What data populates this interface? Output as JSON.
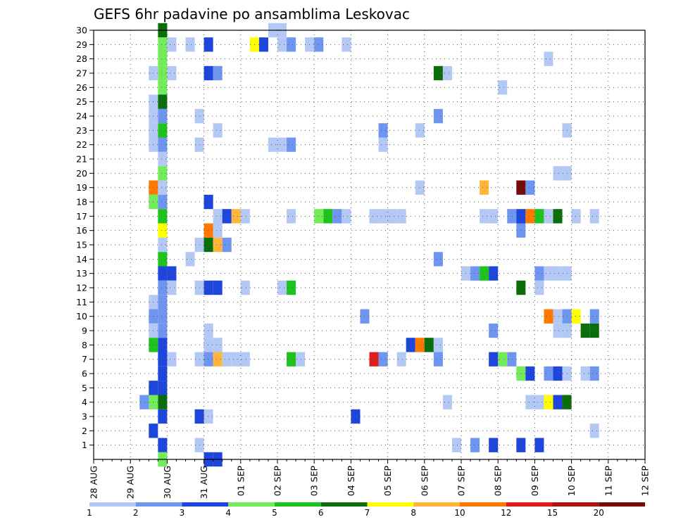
{
  "chart_data": {
    "type": "heatmap",
    "title": "GEFS 6hr padavine po ansamblima Leskovac",
    "xlabel": "",
    "ylabel": "",
    "x_tick_labels": [
      "28 AUG",
      "29 AUG",
      "30 AUG",
      "31 AUG",
      "01 SEP",
      "02 SEP",
      "03 SEP",
      "04 SEP",
      "05 SEP",
      "06 SEP",
      "07 SEP",
      "08 SEP",
      "09 SEP",
      "10 SEP",
      "11 SEP",
      "12 SEP"
    ],
    "y_tick_labels": [
      "1",
      "2",
      "3",
      "4",
      "5",
      "6",
      "7",
      "8",
      "9",
      "10",
      "11",
      "12",
      "13",
      "14",
      "15",
      "16",
      "17",
      "18",
      "19",
      "20",
      "21",
      "22",
      "23",
      "24",
      "25",
      "26",
      "27",
      "28",
      "29",
      "30"
    ],
    "ylim": [
      0,
      30
    ],
    "steps_per_day": 4,
    "grid": true,
    "colorbar": {
      "position": "bottom",
      "labels": [
        "1",
        "2",
        "3",
        "4",
        "5",
        "6",
        "7",
        "8",
        "10",
        "12",
        "15",
        "20"
      ],
      "colors": [
        "#b4c8f5",
        "#6e96f0",
        "#1e46dc",
        "#74eb5a",
        "#1ec31e",
        "#0a6e0a",
        "#ffff00",
        "#ffb43c",
        "#ff7800",
        "#dc1e1e",
        "#aa1414",
        "#780a0a"
      ]
    },
    "cells": [
      {
        "x": 7.5,
        "y": 30,
        "c": 5
      },
      {
        "x": 7.5,
        "y": 29,
        "c": 3
      },
      {
        "x": 7.5,
        "y": 28,
        "c": 3
      },
      {
        "x": 7.5,
        "y": 27,
        "c": 3
      },
      {
        "x": 7.5,
        "y": 26,
        "c": 3
      },
      {
        "x": 7.5,
        "y": 25,
        "c": 5
      },
      {
        "x": 7.5,
        "y": 24,
        "c": 1
      },
      {
        "x": 7.5,
        "y": 23,
        "c": 4
      },
      {
        "x": 7.5,
        "y": 22,
        "c": 1
      },
      {
        "x": 7.5,
        "y": 21,
        "c": 0
      },
      {
        "x": 7.5,
        "y": 20,
        "c": 3
      },
      {
        "x": 7.5,
        "y": 19,
        "c": 0
      },
      {
        "x": 7.5,
        "y": 18,
        "c": 1
      },
      {
        "x": 7.5,
        "y": 17,
        "c": 4
      },
      {
        "x": 7.5,
        "y": 16,
        "c": 6
      },
      {
        "x": 7.5,
        "y": 15,
        "c": 0
      },
      {
        "x": 7.5,
        "y": 14,
        "c": 4
      },
      {
        "x": 7.5,
        "y": 13,
        "c": 2
      },
      {
        "x": 7.5,
        "y": 12,
        "c": 1
      },
      {
        "x": 7.5,
        "y": 11,
        "c": 1
      },
      {
        "x": 7.5,
        "y": 10,
        "c": 1
      },
      {
        "x": 7.5,
        "y": 9,
        "c": 1
      },
      {
        "x": 7.5,
        "y": 8,
        "c": 2
      },
      {
        "x": 7.5,
        "y": 7,
        "c": 2
      },
      {
        "x": 7.5,
        "y": 6,
        "c": 2
      },
      {
        "x": 7.5,
        "y": 5,
        "c": 2
      },
      {
        "x": 7.5,
        "y": 4,
        "c": 5
      },
      {
        "x": 7.5,
        "y": 3,
        "c": 2
      },
      {
        "x": 7.5,
        "y": 1,
        "c": 2
      },
      {
        "x": 7.5,
        "y": 0,
        "c": 3
      },
      {
        "x": 6.5,
        "y": 27,
        "c": 0
      },
      {
        "x": 6.5,
        "y": 25,
        "c": 0
      },
      {
        "x": 6.5,
        "y": 24,
        "c": 0
      },
      {
        "x": 6.5,
        "y": 23,
        "c": 0
      },
      {
        "x": 6.5,
        "y": 22,
        "c": 0
      },
      {
        "x": 6.5,
        "y": 19,
        "c": 8
      },
      {
        "x": 6.5,
        "y": 18,
        "c": 3
      },
      {
        "x": 6.5,
        "y": 11,
        "c": 0
      },
      {
        "x": 6.5,
        "y": 10,
        "c": 1
      },
      {
        "x": 6.5,
        "y": 9,
        "c": 0
      },
      {
        "x": 6.5,
        "y": 8,
        "c": 4
      },
      {
        "x": 6.5,
        "y": 5,
        "c": 2
      },
      {
        "x": 6.5,
        "y": 4,
        "c": 3
      },
      {
        "x": 6.5,
        "y": 2,
        "c": 2
      },
      {
        "x": 5.5,
        "y": 4,
        "c": 1
      },
      {
        "x": 8.5,
        "y": 29,
        "c": 0
      },
      {
        "x": 8.5,
        "y": 27,
        "c": 0
      },
      {
        "x": 8.5,
        "y": 13,
        "c": 2
      },
      {
        "x": 8.5,
        "y": 12,
        "c": 0
      },
      {
        "x": 8.5,
        "y": 7,
        "c": 0
      },
      {
        "x": 10.5,
        "y": 14,
        "c": 0
      },
      {
        "x": 10.5,
        "y": 29,
        "c": 0
      },
      {
        "x": 11.5,
        "y": 22,
        "c": 0
      },
      {
        "x": 11.5,
        "y": 24,
        "c": 0
      },
      {
        "x": 11.5,
        "y": 15,
        "c": 0
      },
      {
        "x": 11.5,
        "y": 12,
        "c": 0
      },
      {
        "x": 11.5,
        "y": 7,
        "c": 0
      },
      {
        "x": 11.5,
        "y": 3,
        "c": 2
      },
      {
        "x": 11.5,
        "y": 1,
        "c": 0
      },
      {
        "x": 12.5,
        "y": 29,
        "c": 2
      },
      {
        "x": 12.5,
        "y": 27,
        "c": 2
      },
      {
        "x": 12.5,
        "y": 18,
        "c": 2
      },
      {
        "x": 12.5,
        "y": 16,
        "c": 8
      },
      {
        "x": 12.5,
        "y": 15,
        "c": 5
      },
      {
        "x": 12.5,
        "y": 12,
        "c": 2
      },
      {
        "x": 12.5,
        "y": 9,
        "c": 0
      },
      {
        "x": 12.5,
        "y": 8,
        "c": 0
      },
      {
        "x": 12.5,
        "y": 7,
        "c": 1
      },
      {
        "x": 12.5,
        "y": 3,
        "c": 0
      },
      {
        "x": 12.5,
        "y": 0,
        "c": 2
      },
      {
        "x": 13.5,
        "y": 27,
        "c": 1
      },
      {
        "x": 13.5,
        "y": 23,
        "c": 0
      },
      {
        "x": 13.5,
        "y": 17,
        "c": 0
      },
      {
        "x": 13.5,
        "y": 16,
        "c": 0
      },
      {
        "x": 13.5,
        "y": 15,
        "c": 7
      },
      {
        "x": 13.5,
        "y": 12,
        "c": 2
      },
      {
        "x": 13.5,
        "y": 8,
        "c": 0
      },
      {
        "x": 13.5,
        "y": 7,
        "c": 7
      },
      {
        "x": 13.5,
        "y": 0,
        "c": 2
      },
      {
        "x": 14.5,
        "y": 17,
        "c": 2
      },
      {
        "x": 14.5,
        "y": 15,
        "c": 1
      },
      {
        "x": 14.5,
        "y": 7,
        "c": 0
      },
      {
        "x": 15.5,
        "y": 17,
        "c": 7
      },
      {
        "x": 15.5,
        "y": 7,
        "c": 0
      },
      {
        "x": 16.5,
        "y": 17,
        "c": 0
      },
      {
        "x": 16.5,
        "y": 12,
        "c": 0
      },
      {
        "x": 16.5,
        "y": 7,
        "c": 0
      },
      {
        "x": 17.5,
        "y": 29,
        "c": 6
      },
      {
        "x": 18.5,
        "y": 29,
        "c": 2
      },
      {
        "x": 19.5,
        "y": 30,
        "c": 0
      },
      {
        "x": 19.5,
        "y": 22,
        "c": 0
      },
      {
        "x": 20.5,
        "y": 30,
        "c": 0
      },
      {
        "x": 20.5,
        "y": 29,
        "c": 0
      },
      {
        "x": 20.5,
        "y": 22,
        "c": 0
      },
      {
        "x": 20.5,
        "y": 12,
        "c": 0
      },
      {
        "x": 21.5,
        "y": 29,
        "c": 1
      },
      {
        "x": 21.5,
        "y": 22,
        "c": 1
      },
      {
        "x": 21.5,
        "y": 17,
        "c": 0
      },
      {
        "x": 21.5,
        "y": 12,
        "c": 4
      },
      {
        "x": 21.5,
        "y": 7,
        "c": 4
      },
      {
        "x": 22.5,
        "y": 7,
        "c": 0
      },
      {
        "x": 23.5,
        "y": 29,
        "c": 0
      },
      {
        "x": 24.5,
        "y": 29,
        "c": 1
      },
      {
        "x": 24.5,
        "y": 17,
        "c": 3
      },
      {
        "x": 25.5,
        "y": 17,
        "c": 4
      },
      {
        "x": 26.5,
        "y": 17,
        "c": 1
      },
      {
        "x": 27.5,
        "y": 29,
        "c": 0
      },
      {
        "x": 27.5,
        "y": 17,
        "c": 0
      },
      {
        "x": 28.5,
        "y": 3,
        "c": 2
      },
      {
        "x": 29.5,
        "y": 10,
        "c": 1
      },
      {
        "x": 30.5,
        "y": 17,
        "c": 0
      },
      {
        "x": 30.5,
        "y": 7,
        "c": 9
      },
      {
        "x": 31.5,
        "y": 23,
        "c": 1
      },
      {
        "x": 31.5,
        "y": 22,
        "c": 0
      },
      {
        "x": 31.5,
        "y": 17,
        "c": 0
      },
      {
        "x": 31.5,
        "y": 7,
        "c": 1
      },
      {
        "x": 32.5,
        "y": 17,
        "c": 0
      },
      {
        "x": 33.5,
        "y": 17,
        "c": 0
      },
      {
        "x": 33.5,
        "y": 7,
        "c": 0
      },
      {
        "x": 34.5,
        "y": 8,
        "c": 2
      },
      {
        "x": 35.5,
        "y": 23,
        "c": 0
      },
      {
        "x": 35.5,
        "y": 19,
        "c": 0
      },
      {
        "x": 35.5,
        "y": 8,
        "c": 8
      },
      {
        "x": 36.5,
        "y": 8,
        "c": 5
      },
      {
        "x": 37.5,
        "y": 27,
        "c": 5
      },
      {
        "x": 37.5,
        "y": 24,
        "c": 1
      },
      {
        "x": 37.5,
        "y": 14,
        "c": 1
      },
      {
        "x": 37.5,
        "y": 8,
        "c": 0
      },
      {
        "x": 37.5,
        "y": 7,
        "c": 1
      },
      {
        "x": 38.5,
        "y": 27,
        "c": 0
      },
      {
        "x": 38.5,
        "y": 4,
        "c": 0
      },
      {
        "x": 39.5,
        "y": 1,
        "c": 0
      },
      {
        "x": 40.5,
        "y": 13,
        "c": 0
      },
      {
        "x": 41.5,
        "y": 13,
        "c": 1
      },
      {
        "x": 41.5,
        "y": 1,
        "c": 1
      },
      {
        "x": 42.5,
        "y": 19,
        "c": 7
      },
      {
        "x": 42.5,
        "y": 17,
        "c": 0
      },
      {
        "x": 42.5,
        "y": 13,
        "c": 4
      },
      {
        "x": 43.5,
        "y": 17,
        "c": 0
      },
      {
        "x": 43.5,
        "y": 13,
        "c": 2
      },
      {
        "x": 43.5,
        "y": 9,
        "c": 1
      },
      {
        "x": 43.5,
        "y": 7,
        "c": 2
      },
      {
        "x": 43.5,
        "y": 1,
        "c": 2
      },
      {
        "x": 44.5,
        "y": 26,
        "c": 0
      },
      {
        "x": 44.5,
        "y": 7,
        "c": 3
      },
      {
        "x": 45.5,
        "y": 17,
        "c": 1
      },
      {
        "x": 45.5,
        "y": 7,
        "c": 1
      },
      {
        "x": 46.5,
        "y": 19,
        "c": 11
      },
      {
        "x": 46.5,
        "y": 17,
        "c": 2
      },
      {
        "x": 46.5,
        "y": 16,
        "c": 1
      },
      {
        "x": 46.5,
        "y": 12,
        "c": 5
      },
      {
        "x": 46.5,
        "y": 6,
        "c": 3
      },
      {
        "x": 46.5,
        "y": 1,
        "c": 2
      },
      {
        "x": 47.5,
        "y": 19,
        "c": 1
      },
      {
        "x": 47.5,
        "y": 17,
        "c": 8
      },
      {
        "x": 47.5,
        "y": 6,
        "c": 2
      },
      {
        "x": 47.5,
        "y": 4,
        "c": 0
      },
      {
        "x": 48.5,
        "y": 17,
        "c": 4
      },
      {
        "x": 48.5,
        "y": 13,
        "c": 1
      },
      {
        "x": 48.5,
        "y": 12,
        "c": 0
      },
      {
        "x": 48.5,
        "y": 4,
        "c": 0
      },
      {
        "x": 48.5,
        "y": 1,
        "c": 2
      },
      {
        "x": 49.5,
        "y": 28,
        "c": 0
      },
      {
        "x": 49.5,
        "y": 17,
        "c": 0
      },
      {
        "x": 49.5,
        "y": 13,
        "c": 0
      },
      {
        "x": 49.5,
        "y": 10,
        "c": 8
      },
      {
        "x": 49.5,
        "y": 6,
        "c": 1
      },
      {
        "x": 49.5,
        "y": 4,
        "c": 6
      },
      {
        "x": 50.5,
        "y": 20,
        "c": 0
      },
      {
        "x": 50.5,
        "y": 17,
        "c": 5
      },
      {
        "x": 50.5,
        "y": 13,
        "c": 0
      },
      {
        "x": 50.5,
        "y": 10,
        "c": 0
      },
      {
        "x": 50.5,
        "y": 9,
        "c": 0
      },
      {
        "x": 50.5,
        "y": 6,
        "c": 2
      },
      {
        "x": 50.5,
        "y": 4,
        "c": 2
      },
      {
        "x": 51.5,
        "y": 23,
        "c": 0
      },
      {
        "x": 51.5,
        "y": 20,
        "c": 0
      },
      {
        "x": 51.5,
        "y": 13,
        "c": 0
      },
      {
        "x": 51.5,
        "y": 10,
        "c": 1
      },
      {
        "x": 51.5,
        "y": 9,
        "c": 0
      },
      {
        "x": 51.5,
        "y": 6,
        "c": 0
      },
      {
        "x": 51.5,
        "y": 4,
        "c": 5
      },
      {
        "x": 52.5,
        "y": 17,
        "c": 0
      },
      {
        "x": 52.5,
        "y": 10,
        "c": 6
      },
      {
        "x": 53.5,
        "y": 9,
        "c": 5
      },
      {
        "x": 53.5,
        "y": 6,
        "c": 0
      },
      {
        "x": 54.5,
        "y": 17,
        "c": 0
      },
      {
        "x": 54.5,
        "y": 10,
        "c": 1
      },
      {
        "x": 54.5,
        "y": 9,
        "c": 5
      },
      {
        "x": 54.5,
        "y": 6,
        "c": 1
      },
      {
        "x": 54.5,
        "y": 2,
        "c": 0
      }
    ]
  }
}
